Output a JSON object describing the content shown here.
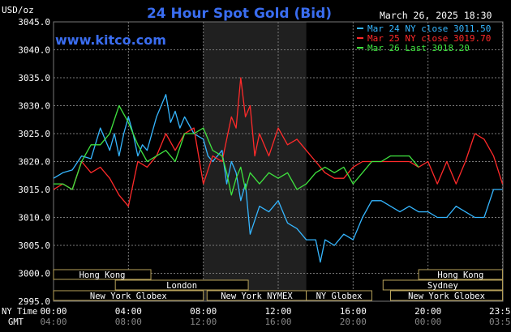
{
  "header": {
    "title": "24 Hour Spot Gold (Bid)",
    "site": "www.kitco.com",
    "date_time": "March 26, 2025 18:30",
    "y_unit": "USD/oz"
  },
  "colors": {
    "background": "#000000",
    "title": "#3a6df0",
    "site": "#3a6df0",
    "series_mar24": "#35b6ff",
    "series_mar25": "#ff2a2a",
    "series_mar26": "#3fe23f",
    "axis_text": "#ffffff",
    "grid": "#7a7a7a",
    "shade": "#3a3a3a",
    "session_box": "#b8a25a"
  },
  "chart_data": {
    "type": "line",
    "ylim": [
      2995.0,
      3045.0
    ],
    "y_ticks": [
      "3045.0",
      "3040.0",
      "3035.0",
      "3030.0",
      "3025.0",
      "3020.0",
      "3015.0",
      "3010.0",
      "3005.0",
      "3000.0",
      "2995.0"
    ],
    "x_range_hours": [
      0,
      24
    ],
    "x_ticks_ny": [
      "00:00",
      "04:00",
      "08:00",
      "12:00",
      "16:00",
      "20:00",
      "23:59"
    ],
    "x_ticks_gmt": [
      "04:00",
      "08:00",
      "12:00",
      "16:00",
      "20:00",
      "00:00",
      "03:59"
    ],
    "x_row_labels": [
      "NY Time",
      "GMT"
    ],
    "x_tick_hours": [
      0,
      4,
      8,
      12,
      16,
      20,
      23.98
    ],
    "grid": true,
    "shaded_hours": [
      8,
      13.5
    ],
    "legend": [
      {
        "label": "Mar 24 NY close 3011.50",
        "color": "#35b6ff"
      },
      {
        "label": "Mar 25 NY close 3019.70",
        "color": "#ff2a2a"
      },
      {
        "label": "Mar 26 Last 3018.20",
        "color": "#3fe23f"
      }
    ],
    "legend_position": "top-right",
    "series": [
      {
        "name": "Mar 24 NY close 3011.50",
        "color": "#35b6ff",
        "x": [
          0,
          0.5,
          1,
          1.5,
          2,
          2.5,
          3,
          3.25,
          3.5,
          3.75,
          4,
          4.25,
          4.5,
          4.75,
          5,
          5.5,
          6,
          6.25,
          6.5,
          6.75,
          7,
          7.5,
          8,
          8.25,
          8.5,
          9,
          9.25,
          9.5,
          9.75,
          10,
          10.25,
          10.5,
          11,
          11.5,
          12,
          12.5,
          13,
          13.5,
          14,
          14.25,
          14.5,
          15,
          15.5,
          16,
          16.5,
          17,
          17.5,
          18,
          18.5,
          19,
          19.5,
          20,
          20.5,
          21,
          21.5,
          22,
          22.5,
          23,
          23.5,
          23.98
        ],
        "y": [
          3017,
          3018,
          3018.5,
          3021,
          3020.5,
          3026,
          3022,
          3025,
          3021,
          3025,
          3028,
          3025,
          3021,
          3023,
          3022,
          3028,
          3032,
          3027,
          3029,
          3026,
          3028,
          3025,
          3024,
          3021,
          3020,
          3022,
          3016,
          3020,
          3018,
          3013,
          3016,
          3007,
          3012,
          3011,
          3013,
          3009,
          3008,
          3006,
          3006,
          3002,
          3006,
          3005,
          3007,
          3006,
          3010,
          3013,
          3013,
          3012,
          3011,
          3012,
          3011,
          3011,
          3010,
          3010,
          3012,
          3011,
          3010,
          3010,
          3015,
          3015
        ]
      },
      {
        "name": "Mar 25 NY close 3019.70",
        "color": "#ff2a2a",
        "x": [
          0,
          0.5,
          1,
          1.5,
          2,
          2.5,
          3,
          3.5,
          4,
          4.5,
          5,
          5.5,
          6,
          6.5,
          7,
          7.5,
          8,
          8.5,
          9,
          9.25,
          9.5,
          9.75,
          10,
          10.25,
          10.5,
          10.75,
          11,
          11.5,
          12,
          12.5,
          13,
          13.5,
          14,
          14.5,
          15,
          15.5,
          16,
          16.5,
          17,
          17.5,
          18,
          18.5,
          19,
          19.5,
          20,
          20.5,
          21,
          21.5,
          22,
          22.5,
          23,
          23.5,
          23.98
        ],
        "y": [
          3015,
          3016,
          3015,
          3020,
          3018,
          3019,
          3017,
          3014,
          3012,
          3020,
          3019,
          3021,
          3025,
          3022,
          3025,
          3026,
          3016,
          3021,
          3020,
          3024,
          3028,
          3026,
          3035,
          3028,
          3030,
          3021,
          3025,
          3021,
          3026,
          3023,
          3024,
          3022,
          3020,
          3018,
          3017,
          3017,
          3019,
          3020,
          3020,
          3020,
          3020,
          3020,
          3020,
          3019,
          3020,
          3016,
          3020,
          3016,
          3020,
          3025,
          3024,
          3021,
          3016
        ]
      },
      {
        "name": "Mar 26 Last 3018.20",
        "color": "#3fe23f",
        "x": [
          0,
          0.5,
          1,
          1.5,
          2,
          2.5,
          3,
          3.5,
          4,
          4.5,
          5,
          5.5,
          6,
          6.5,
          7,
          7.5,
          8,
          8.5,
          9,
          9.25,
          9.5,
          9.75,
          10,
          10.25,
          10.5,
          11,
          11.5,
          12,
          12.5,
          13,
          13.5,
          14,
          14.5,
          15,
          15.5,
          16,
          16.5,
          17,
          17.5,
          18,
          18.5,
          19,
          19.5
        ],
        "y": [
          3016,
          3016,
          3015,
          3020,
          3023,
          3023,
          3025,
          3030,
          3027,
          3023,
          3020,
          3021,
          3022,
          3020,
          3025,
          3025,
          3026,
          3022,
          3021,
          3018,
          3014,
          3017,
          3019,
          3015,
          3018,
          3016,
          3018,
          3017,
          3018,
          3015,
          3016,
          3018,
          3019,
          3018,
          3019,
          3016,
          3018,
          3020,
          3020,
          3021,
          3021,
          3021,
          3019
        ]
      }
    ]
  },
  "sessions": [
    {
      "label": "Hong Kong",
      "start": 0,
      "end": 5.2,
      "row": 0
    },
    {
      "label": "Hong Kong",
      "start": 19.5,
      "end": 23.98,
      "row": 0
    },
    {
      "label": "London",
      "start": 3.3,
      "end": 10.4,
      "row": 1
    },
    {
      "label": "Sydney",
      "start": 17.6,
      "end": 23.98,
      "row": 1
    },
    {
      "label": "New York Globex",
      "start": 0,
      "end": 8.0,
      "row": 2
    },
    {
      "label": "New York NYMEX",
      "start": 8.2,
      "end": 13.5,
      "row": 2
    },
    {
      "label": "NY Globex",
      "start": 13.5,
      "end": 17.0,
      "row": 2
    },
    {
      "label": "New York Globex",
      "start": 18.0,
      "end": 23.98,
      "row": 2
    }
  ]
}
